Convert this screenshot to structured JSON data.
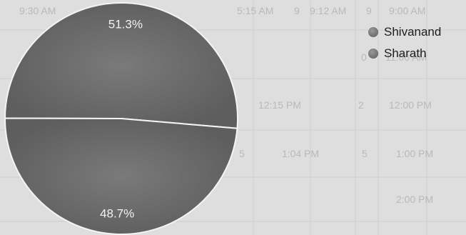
{
  "chart_data": {
    "type": "pie",
    "title": "",
    "slices": [
      {
        "label": "Shivanand",
        "value": 51.3,
        "value_label": "51.3%",
        "color": "#6e6e6e"
      },
      {
        "label": "Sharath",
        "value": 48.7,
        "value_label": "48.7%",
        "color": "#6b6b6b"
      }
    ],
    "legend_position": "top-right"
  },
  "background_table": {
    "rows": [
      [
        "9:00 AM",
        "9",
        "9:12 AM",
        "9",
        "5:15 AM",
        "9:30 AM"
      ],
      [
        "11:00 AM",
        "0",
        "",
        "",
        "",
        ""
      ],
      [
        "12:00 PM",
        "2",
        "12:15 PM",
        "",
        "",
        ""
      ],
      [
        "1:00 PM",
        "5",
        "1:04 PM",
        "5",
        "",
        ""
      ],
      [
        "2:00 PM",
        "",
        "",
        "",
        "",
        ""
      ]
    ]
  }
}
